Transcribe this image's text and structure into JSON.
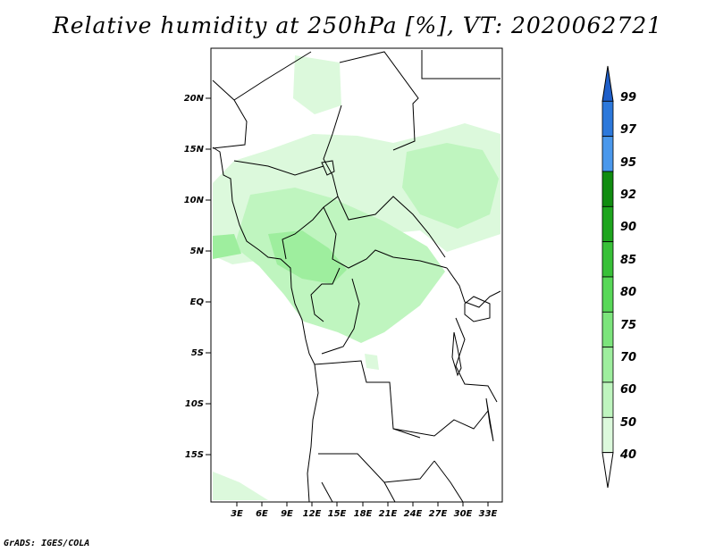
{
  "title": "Relative humidity at 250hPa [%], VT: 2020062721",
  "credit": "GrADS: IGES/COLA",
  "y_axis_labels": [
    "20N",
    "15N",
    "10N",
    "5N",
    "EQ",
    "5S",
    "10S",
    "15S"
  ],
  "x_axis_labels": [
    "3E",
    "6E",
    "9E",
    "12E",
    "15E",
    "18E",
    "21E",
    "24E",
    "27E",
    "30E",
    "33E"
  ],
  "colorbar": {
    "labels": [
      "99",
      "97",
      "95",
      "92",
      "90",
      "85",
      "80",
      "75",
      "70",
      "60",
      "50",
      "40"
    ],
    "colors": [
      "#1f5fc9",
      "#2c78db",
      "#4a98ec",
      "#108c10",
      "#1ea51e",
      "#38c038",
      "#58d858",
      "#7ce47c",
      "#9eee9e",
      "#bff5bf",
      "#dcf9dc",
      "#f0fdf0"
    ]
  },
  "colors": {
    "humidity_light": "#dcf9dc",
    "humidity_mid": "#bff5bf",
    "humidity_high": "#9eee9e"
  }
}
